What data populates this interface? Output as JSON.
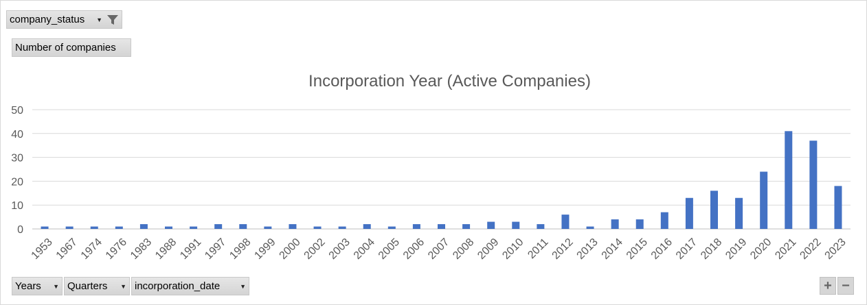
{
  "filter_field": {
    "label": "company_status",
    "icon": "filter-icon"
  },
  "values_field": {
    "label": "Number of companies"
  },
  "axis_fields": [
    {
      "label": "Years"
    },
    {
      "label": "Quarters"
    },
    {
      "label": "incorporation_date"
    }
  ],
  "zoom": {
    "plus": "+",
    "minus": "−"
  },
  "chart_data": {
    "type": "bar",
    "title": "Incorporation Year (Active Companies)",
    "xlabel": "",
    "ylabel": "",
    "ylim": [
      0,
      50
    ],
    "yticks": [
      0,
      10,
      20,
      30,
      40,
      50
    ],
    "grid": true,
    "bar_color": "#4472c4",
    "categories": [
      "1953",
      "1967",
      "1974",
      "1976",
      "1983",
      "1988",
      "1991",
      "1997",
      "1998",
      "1999",
      "2000",
      "2002",
      "2003",
      "2004",
      "2005",
      "2006",
      "2007",
      "2008",
      "2009",
      "2010",
      "2011",
      "2012",
      "2013",
      "2014",
      "2015",
      "2016",
      "2017",
      "2018",
      "2019",
      "2020",
      "2021",
      "2022",
      "2023"
    ],
    "values": [
      1,
      1,
      1,
      1,
      2,
      1,
      1,
      2,
      2,
      1,
      2,
      1,
      1,
      2,
      1,
      2,
      2,
      2,
      3,
      3,
      2,
      6,
      1,
      4,
      4,
      7,
      13,
      16,
      13,
      24,
      41,
      37,
      18
    ]
  }
}
